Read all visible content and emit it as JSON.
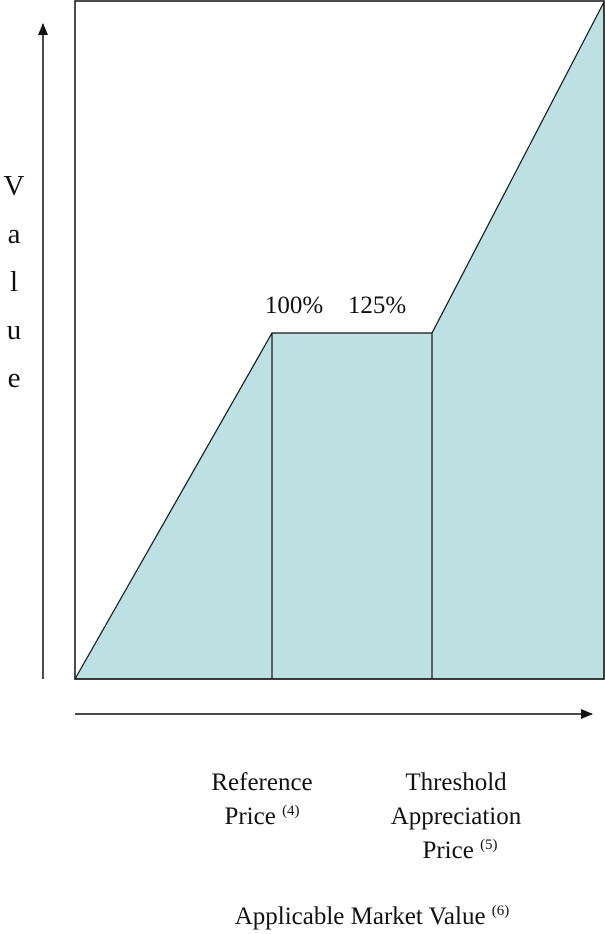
{
  "y_axis_label": "Value",
  "level_labels": [
    "100%",
    "125%"
  ],
  "x_labels": [
    {
      "lines": [
        "Reference",
        "Price"
      ],
      "note": "(4)"
    },
    {
      "lines": [
        "Threshold",
        "Appreciation",
        "Price"
      ],
      "note": "(5)"
    }
  ],
  "x_axis_label": {
    "text": "Applicable Market Value",
    "note": "(6)"
  }
}
